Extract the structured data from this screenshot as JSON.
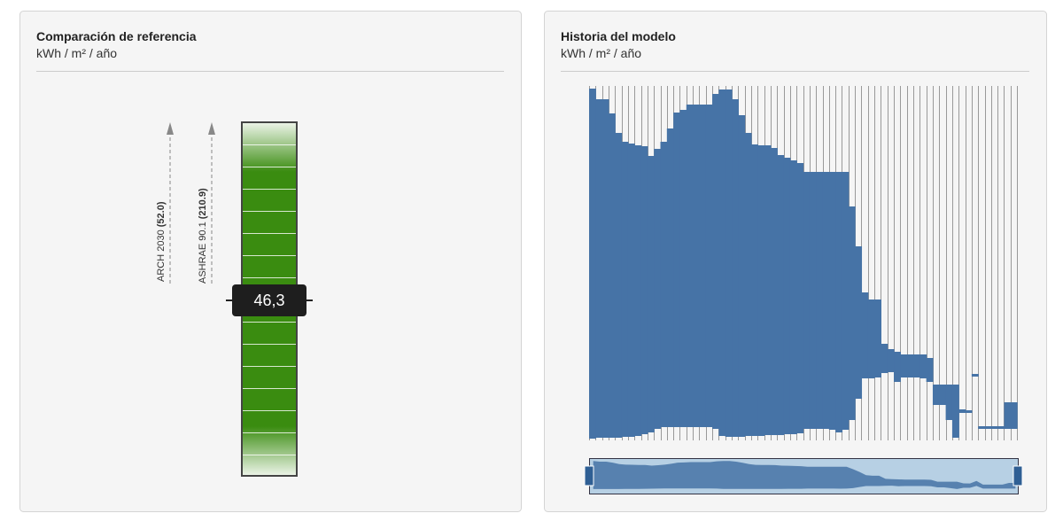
{
  "left": {
    "title": "Comparación de referencia",
    "subtitle": "kWh / m² / año",
    "benchmarks": [
      {
        "name": "ARCH 2030",
        "value_label": "(52.0)"
      },
      {
        "name": "ASHRAE 90.1",
        "value_label": "(210.9)"
      }
    ],
    "current": "46,3"
  },
  "right": {
    "title": "Historia del modelo",
    "subtitle": "kWh / m² / año",
    "history": {
      "type": "area-range",
      "color": "#4673a6",
      "high": [
        397,
        385,
        385,
        369,
        347,
        337,
        335,
        333,
        332,
        321,
        329,
        337,
        352,
        370,
        373,
        379,
        379,
        379,
        379,
        391,
        396,
        396,
        385,
        367,
        347,
        334,
        333,
        333,
        330,
        322,
        319,
        316,
        313,
        303,
        303,
        303,
        303,
        303,
        303,
        303,
        264,
        219,
        167,
        159,
        159,
        109,
        103,
        100,
        97,
        97,
        97,
        97,
        93,
        63,
        63,
        63,
        63,
        35,
        34,
        75,
        16,
        16,
        16,
        16,
        43,
        43
      ],
      "low": [
        2,
        3,
        3,
        3,
        3,
        4,
        4,
        5,
        7,
        9,
        13,
        15,
        15,
        15,
        15,
        15,
        15,
        15,
        15,
        13,
        5,
        4,
        4,
        4,
        5,
        5,
        5,
        6,
        6,
        6,
        7,
        7,
        8,
        13,
        13,
        13,
        13,
        12,
        9,
        12,
        23,
        47,
        70,
        70,
        71,
        76,
        77,
        66,
        71,
        71,
        71,
        70,
        66,
        40,
        40,
        23,
        3,
        31,
        31,
        72,
        13,
        13,
        13,
        13,
        13,
        13
      ]
    }
  }
}
